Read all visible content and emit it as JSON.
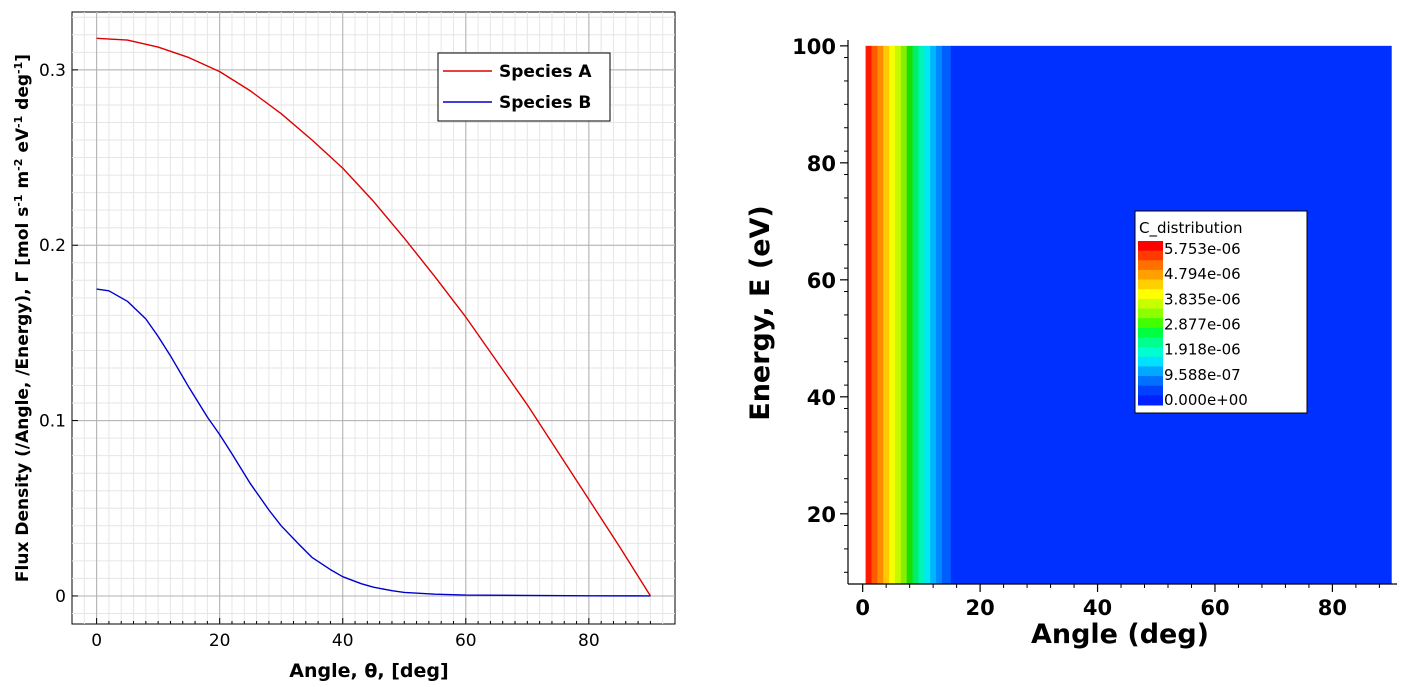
{
  "chart_data": [
    {
      "type": "line",
      "xlabel": "Angle, θ, [deg]",
      "ylabel_parts": [
        "Flux Density (/Angle, /Energy), Γ [mol s",
        "-1",
        " m",
        "-2",
        " eV",
        "-1",
        " deg",
        "-1",
        "]"
      ],
      "xlim": [
        -4,
        94
      ],
      "ylim": [
        -0.016,
        0.333
      ],
      "xticks": [
        0,
        20,
        40,
        60,
        80
      ],
      "yticks": [
        0,
        0.1,
        0.2,
        0.3
      ],
      "ytick_labels": [
        "0",
        "0.1",
        "0.2",
        "0.3"
      ],
      "grid": true,
      "legend_position": "top-right",
      "series": [
        {
          "name": "Species A",
          "color": "#dd0000",
          "x": [
            0,
            5,
            10,
            15,
            20,
            25,
            30,
            35,
            40,
            45,
            50,
            55,
            60,
            65,
            70,
            75,
            80,
            85,
            90
          ],
          "y": [
            0.318,
            0.317,
            0.313,
            0.307,
            0.299,
            0.288,
            0.275,
            0.26,
            0.244,
            0.225,
            0.204,
            0.182,
            0.159,
            0.134,
            0.109,
            0.082,
            0.055,
            0.028,
            0.0
          ]
        },
        {
          "name": "Species B",
          "color": "#0000cc",
          "x": [
            0,
            2,
            5,
            8,
            10,
            12,
            15,
            18,
            20,
            22,
            25,
            28,
            30,
            33,
            35,
            38,
            40,
            43,
            45,
            48,
            50,
            55,
            60,
            70,
            80,
            90
          ],
          "y": [
            0.175,
            0.174,
            0.168,
            0.158,
            0.148,
            0.137,
            0.119,
            0.102,
            0.092,
            0.081,
            0.064,
            0.049,
            0.04,
            0.029,
            0.022,
            0.015,
            0.011,
            0.007,
            0.005,
            0.003,
            0.002,
            0.001,
            0.0005,
            0.0003,
            0.0001,
            0.0
          ]
        }
      ]
    },
    {
      "type": "heatmap",
      "xlabel": "Angle (deg)",
      "ylabel": "Energy, E (eV)",
      "xlim": [
        -2.5,
        91
      ],
      "ylim": [
        8,
        101
      ],
      "xticks": [
        0,
        20,
        40,
        60,
        80
      ],
      "yticks": [
        20,
        40,
        60,
        80,
        100
      ],
      "data_extent": {
        "x": [
          0.5,
          90
        ],
        "y": [
          8,
          100
        ]
      },
      "column_edges": [
        0.5,
        1.5,
        2.5,
        3.5,
        4.5,
        5.5,
        6.5,
        7.5,
        8.5,
        9.5,
        10.5,
        11.5,
        12.5,
        13.5,
        15,
        90
      ],
      "column_colors": [
        "#ff1800",
        "#ff5a00",
        "#ff8c00",
        "#ffc800",
        "#f6ff00",
        "#c6f800",
        "#86ee00",
        "#19e000",
        "#00ee6a",
        "#00f5b6",
        "#00e8f0",
        "#00b4ff",
        "#0088ff",
        "#005eff",
        "#0030ff"
      ],
      "colorbar": {
        "title": "C_distribution",
        "labels": [
          "5.753e-06",
          "4.794e-06",
          "3.835e-06",
          "2.877e-06",
          "1.918e-06",
          "9.588e-07",
          "0.000e+00"
        ],
        "colors": [
          "#ff0000",
          "#ff3a00",
          "#ff7000",
          "#ffa000",
          "#ffd000",
          "#ffff00",
          "#c8ff00",
          "#8cff00",
          "#40ff00",
          "#00ff40",
          "#00ff90",
          "#00ffd0",
          "#00e0ff",
          "#00a8ff",
          "#0070ff",
          "#0040ff",
          "#0020ff"
        ]
      }
    }
  ]
}
